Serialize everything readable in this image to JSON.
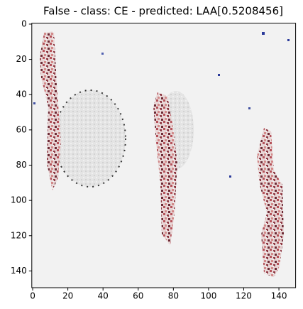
{
  "chart_data": {
    "type": "image",
    "title": "False - class: CE - predicted: LAA[0.5208456]",
    "xlim": [
      -0.5,
      149.5
    ],
    "ylim": [
      149.5,
      -0.5
    ],
    "xticks": [
      0,
      20,
      40,
      60,
      80,
      100,
      120,
      140
    ],
    "yticks": [
      0,
      20,
      40,
      60,
      80,
      100,
      120,
      140
    ]
  }
}
